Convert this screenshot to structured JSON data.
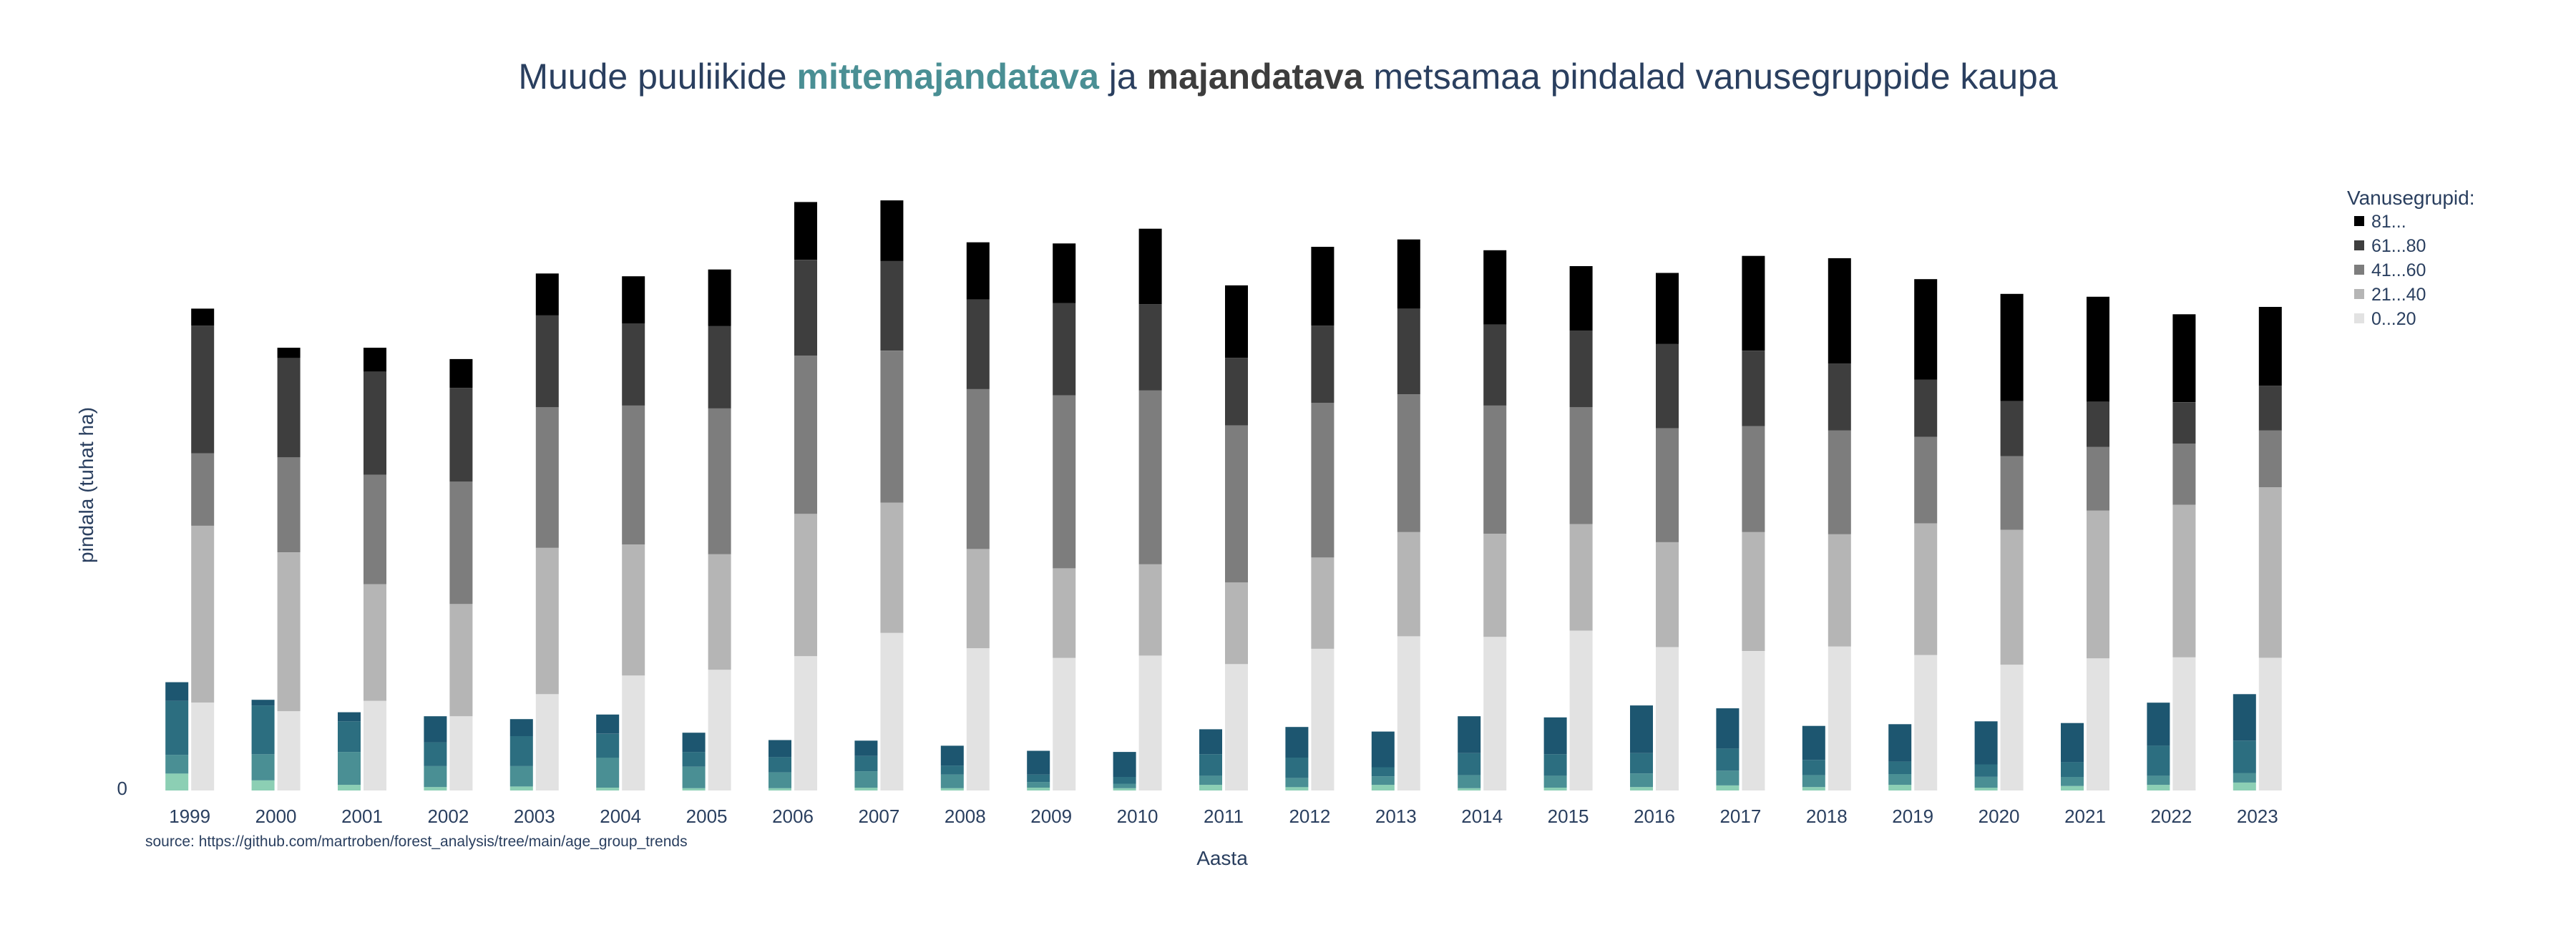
{
  "chart_data": {
    "type": "bar",
    "title_parts": [
      "Muude puuliikide ",
      "mittemajandatava",
      " ja ",
      "majandatava",
      " metsamaa pindalad vanusegruppide kaupa"
    ],
    "xlabel": "Aasta",
    "ylabel": "pindala (tuhat ha)",
    "source": "source: https://github.com/martroben/forest_analysis/tree/main/age_group_trends",
    "y_tick_label": "0",
    "ylim": [
      0,
      106
    ],
    "legend": {
      "title": "Vanusegrupid:",
      "placement": "top-right",
      "entries": [
        "81...",
        "61...80",
        "41...60",
        "21...40",
        "0...20"
      ]
    },
    "categories": [
      "1999",
      "2000",
      "2001",
      "2002",
      "2003",
      "2004",
      "2005",
      "2006",
      "2007",
      "2008",
      "2009",
      "2010",
      "2011",
      "2012",
      "2013",
      "2014",
      "2015",
      "2016",
      "2017",
      "2018",
      "2019",
      "2020",
      "2021",
      "2022",
      "2023"
    ],
    "group_order": [
      "0...20",
      "21...40",
      "41...60",
      "61...80",
      "81..."
    ],
    "colors": {
      "managed": [
        "#e2e2e2",
        "#b5b5b5",
        "#7d7d7d",
        "#3e3e3e",
        "#000000"
      ],
      "unmanaged": [
        "#8ccfb4",
        "#4a8f94",
        "#2c6e80",
        "#1d5670",
        "#153f5b"
      ]
    },
    "series": [
      {
        "name": "mittemajandatava",
        "stacks": [
          [
            3.0,
            3.3,
            9.5,
            3.3,
            0
          ],
          [
            1.8,
            4.6,
            8.6,
            1.0,
            0
          ],
          [
            1.0,
            5.8,
            5.4,
            1.6,
            0
          ],
          [
            0.6,
            3.7,
            4.2,
            4.6,
            0
          ],
          [
            0.7,
            3.6,
            5.3,
            3.0,
            0
          ],
          [
            0.5,
            5.3,
            4.2,
            3.4,
            0
          ],
          [
            0.4,
            3.8,
            2.6,
            3.4,
            0
          ],
          [
            0.4,
            2.8,
            2.7,
            3.0,
            0
          ],
          [
            0.5,
            2.9,
            2.7,
            2.7,
            0
          ],
          [
            0.4,
            2.4,
            1.6,
            3.5,
            0
          ],
          [
            0.5,
            1.0,
            1.3,
            4.2,
            0
          ],
          [
            0.4,
            0.8,
            1.2,
            4.4,
            0
          ],
          [
            1.0,
            1.6,
            3.8,
            4.4,
            0
          ],
          [
            0.6,
            1.6,
            3.6,
            5.4,
            0
          ],
          [
            1.0,
            1.5,
            1.6,
            6.3,
            0
          ],
          [
            0.4,
            2.3,
            3.9,
            6.5,
            0
          ],
          [
            0.5,
            2.1,
            3.8,
            6.5,
            0
          ],
          [
            0.6,
            2.4,
            3.6,
            8.4,
            0
          ],
          [
            0.9,
            2.6,
            3.9,
            7.1,
            0
          ],
          [
            0.6,
            2.1,
            2.7,
            6.0,
            0
          ],
          [
            1.0,
            1.9,
            2.2,
            6.6,
            0
          ],
          [
            0.5,
            1.9,
            2.2,
            7.6,
            0
          ],
          [
            0.8,
            1.6,
            2.6,
            6.9,
            0
          ],
          [
            1.0,
            1.6,
            5.3,
            7.6,
            0
          ],
          [
            1.4,
            1.7,
            5.7,
            8.2,
            0
          ]
        ]
      },
      {
        "name": "majandatava",
        "stacks": [
          [
            15.5,
            31.2,
            12.8,
            22.5,
            3.0
          ],
          [
            14.0,
            28.0,
            16.8,
            17.5,
            1.8
          ],
          [
            15.8,
            20.6,
            19.3,
            18.2,
            4.2
          ],
          [
            13.1,
            19.8,
            21.6,
            16.5,
            5.1
          ],
          [
            17.0,
            25.8,
            24.8,
            16.2,
            7.4
          ],
          [
            20.3,
            23.1,
            24.5,
            14.5,
            8.3
          ],
          [
            21.3,
            20.4,
            25.7,
            14.5,
            10.0
          ],
          [
            23.7,
            25.1,
            27.9,
            16.9,
            10.2
          ],
          [
            27.8,
            23.0,
            26.8,
            15.8,
            10.7
          ],
          [
            25.1,
            17.5,
            28.2,
            15.8,
            10.1
          ],
          [
            23.4,
            15.8,
            30.5,
            16.3,
            10.5
          ],
          [
            23.8,
            16.1,
            30.7,
            15.2,
            13.3
          ],
          [
            22.3,
            14.4,
            27.7,
            11.9,
            12.8
          ],
          [
            25.0,
            16.1,
            27.3,
            13.6,
            13.9
          ],
          [
            27.2,
            18.4,
            24.3,
            15.1,
            12.2
          ],
          [
            27.1,
            18.2,
            22.6,
            14.3,
            13.1
          ],
          [
            28.2,
            18.8,
            20.6,
            13.5,
            11.4
          ],
          [
            25.3,
            18.5,
            20.1,
            14.9,
            12.5
          ],
          [
            24.6,
            21.0,
            18.7,
            13.3,
            16.7
          ],
          [
            25.4,
            19.8,
            18.3,
            11.8,
            18.6
          ],
          [
            23.9,
            23.2,
            15.3,
            10.1,
            17.7
          ],
          [
            22.2,
            23.8,
            13.0,
            9.7,
            18.9
          ],
          [
            23.3,
            26.1,
            11.2,
            8.0,
            18.5
          ],
          [
            23.5,
            26.9,
            10.8,
            7.3,
            15.5
          ],
          [
            23.4,
            30.1,
            10.0,
            7.9,
            13.9
          ]
        ]
      }
    ]
  }
}
